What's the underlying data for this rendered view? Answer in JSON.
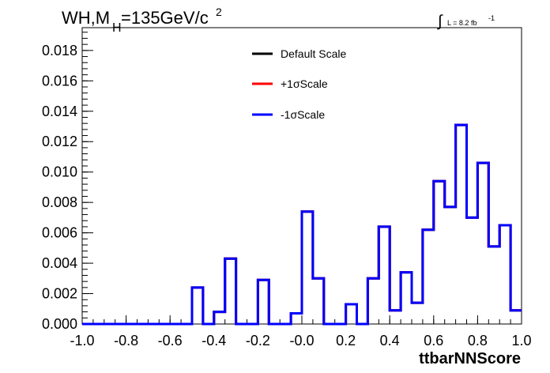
{
  "chart_data": {
    "type": "histogram-step",
    "title_main": "WH,M",
    "title_sub": "H",
    "title_rest": "=135GeV/c",
    "title_sup": "2",
    "lumi_integral": "∫",
    "lumi_text": "L = 8.2 fb",
    "lumi_sup": "-1",
    "xlabel": "ttbarNNScore",
    "xlim": [
      -1.0,
      1.0
    ],
    "ylim": [
      0.0,
      0.0195
    ],
    "x_ticks": [
      -1.0,
      -0.8,
      -0.6,
      -0.4,
      -0.2,
      0.0,
      0.2,
      0.4,
      0.6,
      0.8,
      1.0
    ],
    "x_tick_labels": [
      "-1.0",
      "-0.8",
      "-0.6",
      "-0.4",
      "-0.2",
      "-0.0",
      "0.2",
      "0.4",
      "0.6",
      "0.8",
      "1.0"
    ],
    "y_ticks": [
      0.0,
      0.002,
      0.004,
      0.006,
      0.008,
      0.01,
      0.012,
      0.014,
      0.016,
      0.018
    ],
    "y_tick_labels": [
      "0.000",
      "0.002",
      "0.004",
      "0.006",
      "0.008",
      "0.010",
      "0.012",
      "0.014",
      "0.016",
      "0.018"
    ],
    "bin_edges": [
      -1.0,
      -0.95,
      -0.9,
      -0.85,
      -0.8,
      -0.75,
      -0.7,
      -0.65,
      -0.6,
      -0.55,
      -0.5,
      -0.45,
      -0.4,
      -0.35,
      -0.3,
      -0.25,
      -0.2,
      -0.15,
      -0.1,
      -0.05,
      0.0,
      0.05,
      0.1,
      0.15,
      0.2,
      0.25,
      0.3,
      0.35,
      0.4,
      0.45,
      0.5,
      0.55,
      0.6,
      0.65,
      0.7,
      0.75,
      0.8,
      0.85,
      0.9,
      0.95,
      1.0
    ],
    "series": [
      {
        "name": "Default Scale",
        "color": "#000000",
        "values": [
          0,
          0,
          0,
          0,
          0,
          0,
          0,
          0,
          0,
          0,
          0.0024,
          0,
          0.0008,
          0.0043,
          0,
          0,
          0.0029,
          0,
          0,
          0.0007,
          0.0074,
          0.003,
          0,
          0,
          0.0013,
          0,
          0.003,
          0.0064,
          0.0009,
          0.0034,
          0.0014,
          0.0062,
          0.0094,
          0.0077,
          0.0131,
          0.007,
          0.0106,
          0.0051,
          0.0065,
          0.0009
        ]
      },
      {
        "name": "+1σScale",
        "color": "#ff0000",
        "values": [
          0,
          0,
          0,
          0,
          0,
          0,
          0,
          0,
          0,
          0,
          0.0024,
          0,
          0.0008,
          0.0043,
          0,
          0,
          0.0029,
          0,
          0,
          0.0007,
          0.0074,
          0.003,
          0,
          0,
          0.0013,
          0,
          0.003,
          0.0064,
          0.0009,
          0.0034,
          0.0014,
          0.0062,
          0.0094,
          0.0077,
          0.0131,
          0.007,
          0.0106,
          0.0051,
          0.0065,
          0.0009
        ]
      },
      {
        "name": "-1σScale",
        "color": "#0000ff",
        "values": [
          0,
          0,
          0,
          0,
          0,
          0,
          0,
          0,
          0,
          0,
          0.0024,
          0,
          0.0008,
          0.0043,
          0,
          0,
          0.0029,
          0,
          0,
          0.0007,
          0.0074,
          0.003,
          0,
          0,
          0.0013,
          0,
          0.003,
          0.0064,
          0.0009,
          0.0034,
          0.0014,
          0.0062,
          0.0094,
          0.0077,
          0.0131,
          0.007,
          0.0106,
          0.0051,
          0.0065,
          0.0009
        ]
      }
    ],
    "legend_position": "top-center",
    "grid": false
  }
}
